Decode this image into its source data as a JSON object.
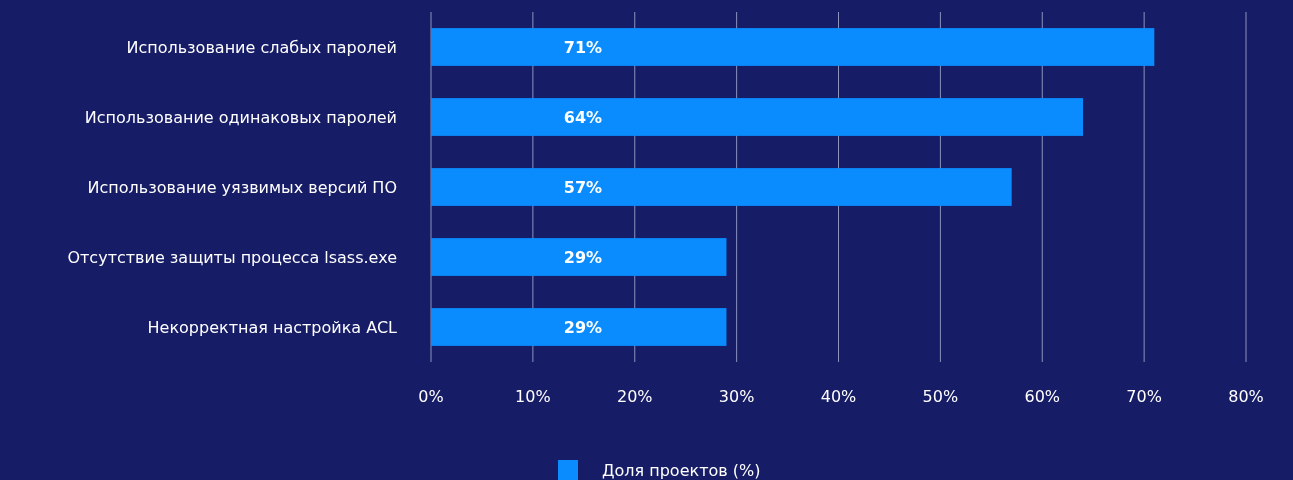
{
  "chart_data": {
    "type": "bar",
    "orientation": "horizontal",
    "categories": [
      "Использование слабых паролей",
      "Использование одинаковых паролей",
      "Использование уязвимых версий ПО",
      "Отсутствие защиты процесса lsass.exe",
      "Некорректная настройка ACL"
    ],
    "series": [
      {
        "name": "Доля проектов (%)",
        "color": "#0a8cff",
        "values": [
          71,
          64,
          57,
          29,
          29
        ]
      }
    ],
    "value_labels": [
      "71%",
      "64%",
      "57%",
      "29%",
      "29%"
    ],
    "xlim": [
      0,
      80
    ],
    "xticks": [
      {
        "value": 0,
        "label": "0%"
      },
      {
        "value": 10,
        "label": "10%"
      },
      {
        "value": 20,
        "label": "20%"
      },
      {
        "value": 30,
        "label": "30%"
      },
      {
        "value": 40,
        "label": "40%"
      },
      {
        "value": 50,
        "label": "50%"
      },
      {
        "value": 60,
        "label": "60%"
      },
      {
        "value": 70,
        "label": "70%"
      },
      {
        "value": 80,
        "label": "80%"
      }
    ],
    "grid": "x",
    "legend": "bottom"
  }
}
